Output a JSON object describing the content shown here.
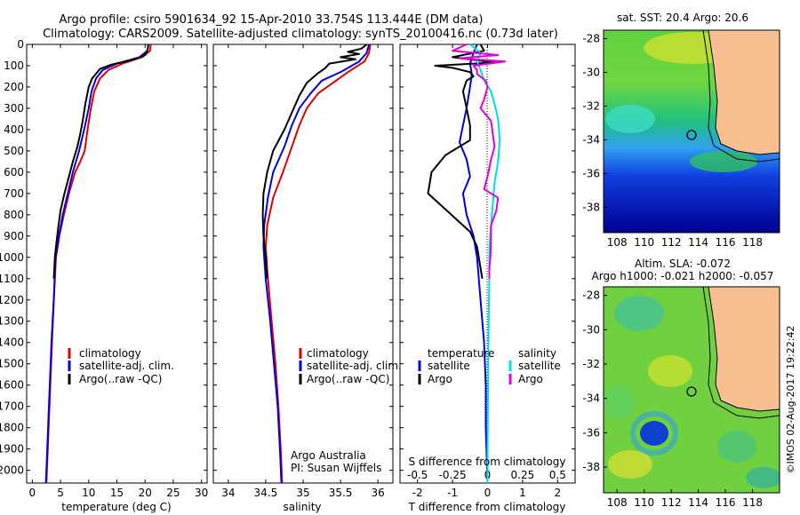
{
  "figure": {
    "title_line1": "Argo profile: csiro 5901634_92 15-Apr-2010 33.754S 113.444E (DM data)",
    "title_line2": "Climatology: CARS2009. Satellite-adjusted climatology: synTS_20100416.nc (0.73d later)",
    "credit": "©IMOS 02-Aug-2017 19:22:42"
  },
  "colors": {
    "climatology": "#e00000",
    "satellite_adj": "#0000e0",
    "argo": "#000000",
    "s_satellite": "#00e0e0",
    "s_argo": "#e000e0",
    "land": "#f8c090",
    "coast": "#000000"
  },
  "chart_data": [
    {
      "type": "line",
      "id": "temperature",
      "xlabel": "temperature (deg C)",
      "xlim": [
        -1,
        31
      ],
      "xticks": [
        0,
        5,
        10,
        15,
        20,
        25,
        30
      ],
      "ylim": [
        0,
        2060
      ],
      "yticks": [
        0,
        100,
        200,
        300,
        400,
        500,
        600,
        700,
        800,
        900,
        1000,
        1100,
        1200,
        1300,
        1400,
        1500,
        1600,
        1700,
        1800,
        1900,
        2000
      ],
      "legend": [
        "climatology",
        "satellite-adj. clim.",
        "Argo(..raw -QC)"
      ],
      "series": [
        {
          "name": "climatology",
          "color_key": "climatology",
          "points": [
            [
              21,
              0
            ],
            [
              20.9,
              30
            ],
            [
              19.5,
              60
            ],
            [
              16,
              90
            ],
            [
              13.5,
              120
            ],
            [
              12,
              160
            ],
            [
              11,
              220
            ],
            [
              10.4,
              300
            ],
            [
              9.8,
              400
            ],
            [
              9.3,
              500
            ],
            [
              8.5,
              550
            ],
            [
              7.6,
              600
            ],
            [
              6.5,
              700
            ],
            [
              5.6,
              800
            ],
            [
              4.8,
              900
            ],
            [
              4.2,
              1000
            ],
            [
              3.8,
              1200
            ],
            [
              3.5,
              1400
            ],
            [
              3.2,
              1600
            ],
            [
              2.9,
              1800
            ],
            [
              2.6,
              2000
            ],
            [
              2.5,
              2060
            ]
          ]
        },
        {
          "name": "satellite-adj. clim.",
          "color_key": "satellite_adj",
          "points": [
            [
              20.6,
              0
            ],
            [
              20.4,
              30
            ],
            [
              19,
              60
            ],
            [
              15,
              90
            ],
            [
              12.5,
              120
            ],
            [
              11.3,
              160
            ],
            [
              10.5,
              220
            ],
            [
              10,
              300
            ],
            [
              9.2,
              400
            ],
            [
              8.3,
              500
            ],
            [
              7.2,
              600
            ],
            [
              6.3,
              700
            ],
            [
              5.4,
              800
            ],
            [
              4.7,
              900
            ],
            [
              4.1,
              1000
            ],
            [
              3.8,
              1200
            ],
            [
              3.4,
              1400
            ],
            [
              3.1,
              1600
            ],
            [
              2.8,
              1800
            ],
            [
              2.5,
              2000
            ],
            [
              2.4,
              2060
            ]
          ]
        },
        {
          "name": "Argo(..raw -QC)",
          "color_key": "argo",
          "points": [
            [
              20.6,
              0
            ],
            [
              20.5,
              20
            ],
            [
              20,
              50
            ],
            [
              17.5,
              75
            ],
            [
              14,
              95
            ],
            [
              12,
              115
            ],
            [
              10.6,
              160
            ],
            [
              10,
              200
            ],
            [
              9.4,
              280
            ],
            [
              9,
              350
            ],
            [
              8.5,
              420
            ],
            [
              8,
              480
            ],
            [
              7.2,
              550
            ],
            [
              6.5,
              620
            ],
            [
              5.7,
              700
            ],
            [
              5,
              780
            ],
            [
              4.6,
              860
            ],
            [
              4.2,
              950
            ],
            [
              4,
              1000
            ],
            [
              3.8,
              1100
            ]
          ]
        }
      ]
    },
    {
      "type": "line",
      "id": "salinity",
      "xlabel": "salinity",
      "xlim": [
        33.8,
        36.2
      ],
      "xticks": [
        34,
        34.5,
        35,
        35.5,
        36
      ],
      "ylim": [
        0,
        2060
      ],
      "legend": [
        "climatology",
        "satellite-adj. clim.",
        "Argo(..raw -QC)"
      ],
      "annotation_line1": "Argo Australia",
      "annotation_line2": "PI: Susan Wijffels",
      "series": [
        {
          "name": "climatology",
          "color_key": "climatology",
          "points": [
            [
              35.9,
              0
            ],
            [
              35.88,
              40
            ],
            [
              35.82,
              80
            ],
            [
              35.6,
              130
            ],
            [
              35.4,
              180
            ],
            [
              35.2,
              230
            ],
            [
              35.05,
              300
            ],
            [
              34.95,
              380
            ],
            [
              34.85,
              480
            ],
            [
              34.73,
              600
            ],
            [
              34.6,
              720
            ],
            [
              34.52,
              850
            ],
            [
              34.5,
              950
            ],
            [
              34.53,
              1100
            ],
            [
              34.58,
              1300
            ],
            [
              34.63,
              1500
            ],
            [
              34.67,
              1700
            ],
            [
              34.7,
              1900
            ],
            [
              34.72,
              2060
            ]
          ]
        },
        {
          "name": "satellite-adj. clim.",
          "color_key": "satellite_adj",
          "points": [
            [
              35.88,
              0
            ],
            [
              35.85,
              40
            ],
            [
              35.75,
              80
            ],
            [
              35.5,
              130
            ],
            [
              35.25,
              170
            ],
            [
              35.1,
              230
            ],
            [
              34.95,
              300
            ],
            [
              34.85,
              380
            ],
            [
              34.75,
              480
            ],
            [
              34.6,
              600
            ],
            [
              34.53,
              720
            ],
            [
              34.48,
              850
            ],
            [
              34.47,
              950
            ],
            [
              34.5,
              1100
            ],
            [
              34.56,
              1300
            ],
            [
              34.61,
              1500
            ],
            [
              34.66,
              1700
            ],
            [
              34.69,
              1900
            ],
            [
              34.71,
              2060
            ]
          ]
        },
        {
          "name": "Argo(..raw -QC)",
          "color_key": "argo",
          "points": [
            [
              35.85,
              0
            ],
            [
              35.78,
              20
            ],
            [
              35.6,
              35
            ],
            [
              35.75,
              45
            ],
            [
              35.5,
              60
            ],
            [
              35.7,
              70
            ],
            [
              35.35,
              90
            ],
            [
              35.3,
              110
            ],
            [
              35.2,
              135
            ],
            [
              35.05,
              180
            ],
            [
              34.95,
              240
            ],
            [
              34.85,
              320
            ],
            [
              34.75,
              400
            ],
            [
              34.6,
              500
            ],
            [
              34.52,
              600
            ],
            [
              34.47,
              700
            ],
            [
              34.46,
              800
            ],
            [
              34.47,
              900
            ],
            [
              34.5,
              1000
            ],
            [
              34.52,
              1100
            ]
          ]
        }
      ]
    },
    {
      "type": "line",
      "id": "differences",
      "xlabel": "T difference from climatology",
      "xlabel_top": "S difference from climatology",
      "xlim": [
        -2.5,
        2.5
      ],
      "xticks": [
        -2,
        -1,
        0,
        1,
        2
      ],
      "sticks": [
        "-0.5",
        "-0.25",
        "0",
        "0.25",
        "0.5"
      ],
      "ylim": [
        0,
        2060
      ],
      "legend_t_title": "temperature",
      "legend_s_title": "salinity",
      "legend_t": [
        "satellite",
        "Argo"
      ],
      "legend_s": [
        "satellite",
        "Argo"
      ],
      "series": [
        {
          "name": "T satellite",
          "color_key": "satellite_adj",
          "points": [
            [
              -0.3,
              0
            ],
            [
              -0.4,
              40
            ],
            [
              -0.5,
              90
            ],
            [
              -0.45,
              140
            ],
            [
              -0.5,
              200
            ],
            [
              -0.6,
              300
            ],
            [
              -0.7,
              380
            ],
            [
              -0.8,
              460
            ],
            [
              -0.6,
              540
            ],
            [
              -0.5,
              620
            ],
            [
              -0.7,
              700
            ],
            [
              -0.6,
              800
            ],
            [
              -0.4,
              900
            ],
            [
              -0.3,
              1000
            ],
            [
              -0.2,
              1200
            ],
            [
              -0.1,
              1400
            ],
            [
              -0.05,
              1600
            ],
            [
              -0.05,
              1800
            ],
            [
              0,
              2060
            ]
          ]
        },
        {
          "name": "T Argo",
          "color_key": "argo",
          "points": [
            [
              -0.2,
              0
            ],
            [
              -0.1,
              30
            ],
            [
              -1,
              60
            ],
            [
              0.2,
              85
            ],
            [
              -1.5,
              100
            ],
            [
              -1,
              110
            ],
            [
              -0.5,
              130
            ],
            [
              -0.4,
              150
            ],
            [
              -0.6,
              170
            ],
            [
              -0.7,
              220
            ],
            [
              -0.6,
              300
            ],
            [
              -0.5,
              380
            ],
            [
              -0.5,
              450
            ],
            [
              -1.2,
              520
            ],
            [
              -1.6,
              600
            ],
            [
              -1.7,
              700
            ],
            [
              -1.3,
              760
            ],
            [
              -0.9,
              820
            ],
            [
              -0.5,
              880
            ],
            [
              -0.3,
              950
            ],
            [
              -0.2,
              1050
            ],
            [
              -0.15,
              1100
            ]
          ]
        },
        {
          "name": "S satellite",
          "color_key": "s_satellite",
          "points": [
            [
              -0.5,
              0
            ],
            [
              -0.2,
              40
            ],
            [
              -0.3,
              80
            ],
            [
              -0.2,
              120
            ],
            [
              -0.1,
              170
            ],
            [
              0.1,
              220
            ],
            [
              0.2,
              280
            ],
            [
              0.3,
              350
            ],
            [
              0.35,
              450
            ],
            [
              0.3,
              550
            ],
            [
              0.2,
              650
            ],
            [
              0.15,
              750
            ],
            [
              0.1,
              850
            ],
            [
              0.05,
              950
            ],
            [
              0.05,
              1100
            ],
            [
              0.03,
              1300
            ],
            [
              0.02,
              1500
            ],
            [
              0.01,
              1700
            ],
            [
              0,
              1900
            ],
            [
              0,
              2060
            ]
          ]
        },
        {
          "name": "S Argo",
          "color_key": "s_argo",
          "points": [
            [
              -0.6,
              0
            ],
            [
              -1,
              30
            ],
            [
              0.3,
              50
            ],
            [
              -0.8,
              65
            ],
            [
              0.5,
              80
            ],
            [
              -0.4,
              100
            ],
            [
              -0.3,
              120
            ],
            [
              -0.3,
              140
            ],
            [
              -0.05,
              170
            ],
            [
              0,
              200
            ],
            [
              -0.1,
              260
            ],
            [
              -0.2,
              300
            ],
            [
              0.1,
              360
            ],
            [
              0.15,
              420
            ],
            [
              0.2,
              480
            ],
            [
              0.1,
              540
            ],
            [
              0.05,
              580
            ],
            [
              0,
              620
            ],
            [
              -0.1,
              680
            ],
            [
              0.3,
              720
            ],
            [
              0.25,
              780
            ],
            [
              0.1,
              850
            ],
            [
              0.1,
              920
            ],
            [
              0.08,
              1000
            ],
            [
              0.05,
              1050
            ],
            [
              0.05,
              1100
            ]
          ]
        }
      ]
    }
  ],
  "maps": [
    {
      "id": "sst",
      "title_line1": "sat. SST: 20.4  Argo: 20.6",
      "title_line2": "",
      "xticks": [
        "108",
        "110",
        "112",
        "114",
        "116",
        "118"
      ],
      "yticks": [
        "-28",
        "-30",
        "-32",
        "-34",
        "-36",
        "-38"
      ],
      "lon_range": [
        107,
        120
      ],
      "lat_range": [
        -39.5,
        -27.5
      ],
      "float_position": [
        113.444,
        -33.754
      ]
    },
    {
      "id": "sla",
      "title_line1": "Altim. SLA: -0.072",
      "title_line2": "Argo h1000: -0.021 h2000: -0.057",
      "xticks": [
        "108",
        "110",
        "112",
        "114",
        "116",
        "118"
      ],
      "yticks": [
        "-28",
        "-30",
        "-32",
        "-34",
        "-36",
        "-38"
      ],
      "lon_range": [
        107,
        120
      ],
      "lat_range": [
        -39.5,
        -27.5
      ],
      "float_position": [
        113.444,
        -33.754
      ]
    }
  ]
}
